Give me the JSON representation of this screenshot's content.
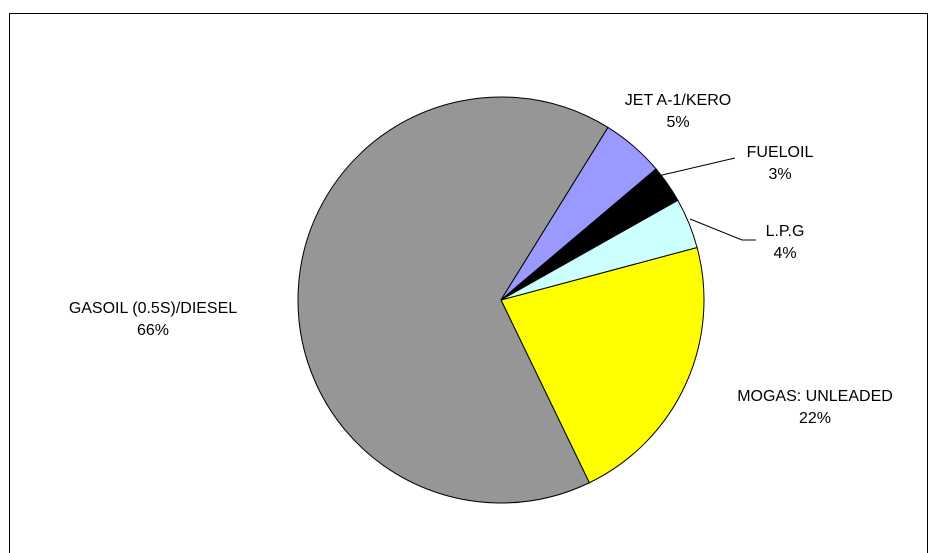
{
  "chart_data": {
    "type": "pie",
    "title": "",
    "slices": [
      {
        "label": "MOGAS: UNLEADED",
        "percent_label": "22%",
        "value": 22,
        "color": "#ffff00"
      },
      {
        "label": "GASOIL (0.5S)/DIESEL",
        "percent_label": "66%",
        "value": 66,
        "color": "#969696"
      },
      {
        "label": "JET A-1/KERO",
        "percent_label": "5%",
        "value": 5,
        "color": "#9999ff"
      },
      {
        "label": "FUELOIL",
        "percent_label": "3%",
        "value": 3,
        "color": "#000000"
      },
      {
        "label": "L.P.G",
        "percent_label": "4%",
        "value": 4,
        "color": "#ccffff"
      }
    ],
    "legend": "none"
  }
}
